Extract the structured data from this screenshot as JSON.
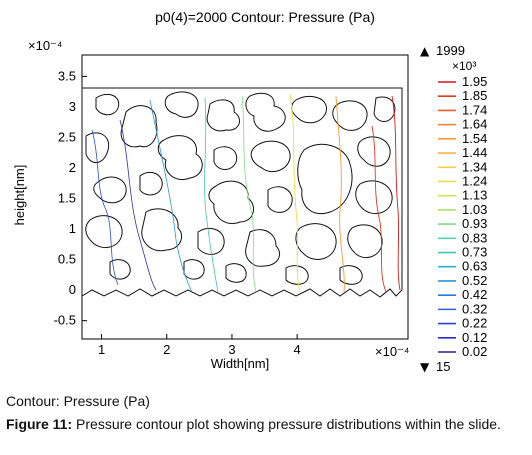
{
  "chart_data": {
    "type": "contour",
    "title": "p0(4)=2000   Contour: Pressure (Pa)",
    "xlabel": "Width[nm]",
    "ylabel": "height[nm]",
    "x_multiplier": "×10⁻⁴",
    "y_multiplier": "×10⁻⁴",
    "x_ticks": [
      1,
      2,
      3,
      4
    ],
    "y_ticks": [
      3.5,
      3,
      2.5,
      2,
      1.5,
      1,
      0.5,
      0,
      -0.5
    ],
    "xlim": [
      0.7,
      5.7
    ],
    "ylim": [
      -0.8,
      3.85
    ],
    "domain_x": [
      0.8,
      5.4
    ],
    "domain_y": [
      0,
      3.25
    ],
    "colorbar": {
      "max_label": "1999",
      "min_label": "15",
      "unit_multiplier": "×10³",
      "levels": [
        "1.95",
        "1.85",
        "1.74",
        "1.64",
        "1.54",
        "1.44",
        "1.34",
        "1.24",
        "1.13",
        "1.03",
        "0.93",
        "0.83",
        "0.73",
        "0.63",
        "0.52",
        "0.42",
        "0.32",
        "0.22",
        "0.12",
        "0.02"
      ],
      "colors": [
        "#d7191c",
        "#e03a22",
        "#e85d2a",
        "#ef7b31",
        "#f59a3a",
        "#f9b640",
        "#f7cd45",
        "#e8df4a",
        "#cde558",
        "#a9e36d",
        "#82db86",
        "#5dd0a0",
        "#3fc2b7",
        "#2fb0cb",
        "#2a98d6",
        "#297cdb",
        "#2b5fd9",
        "#2d44cf",
        "#2e2cc0",
        "#2a1aa8"
      ]
    }
  },
  "caption": {
    "label": "Contour: Pressure (Pa)",
    "figure_number": "Figure 11:",
    "text": " Pressure contour plot showing pressure distributions within the slide."
  }
}
